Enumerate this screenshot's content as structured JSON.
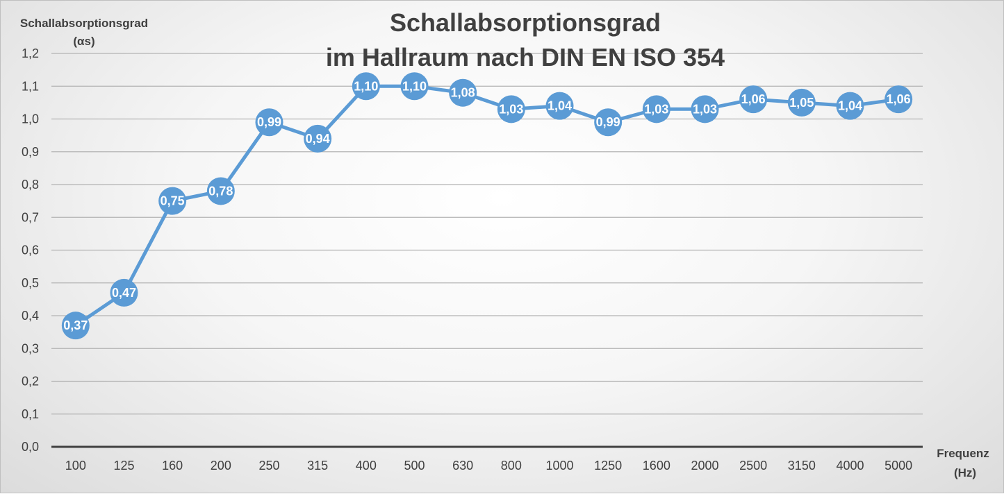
{
  "chart_data": {
    "type": "line",
    "title": [
      "Schallabsorptionsgrad",
      "im Hallraum nach DIN EN ISO 354"
    ],
    "ylabel": [
      "Schallabsorptionsgrad",
      "(αs)"
    ],
    "xlabel": [
      "Frequenz",
      "(Hz)"
    ],
    "ylim": [
      0,
      1.2
    ],
    "yticks": [
      0.0,
      0.1,
      0.2,
      0.3,
      0.4,
      0.5,
      0.6,
      0.7,
      0.8,
      0.9,
      1.0,
      1.1,
      1.2
    ],
    "ytick_labels": [
      "0,0",
      "0,1",
      "0,2",
      "0,3",
      "0,4",
      "0,5",
      "0,6",
      "0,7",
      "0,8",
      "0,9",
      "1,0",
      "1,1",
      "1,2"
    ],
    "categories": [
      "100",
      "125",
      "160",
      "200",
      "250",
      "315",
      "400",
      "500",
      "630",
      "800",
      "1000",
      "1250",
      "1600",
      "2000",
      "2500",
      "3150",
      "4000",
      "5000"
    ],
    "values": [
      0.37,
      0.47,
      0.75,
      0.78,
      0.99,
      0.94,
      1.1,
      1.1,
      1.08,
      1.03,
      1.04,
      0.99,
      1.03,
      1.03,
      1.06,
      1.05,
      1.04,
      1.06
    ],
    "value_labels": [
      "0,37",
      "0,47",
      "0,75",
      "0,78",
      "0,99",
      "0,94",
      "1,10",
      "1,10",
      "1,08",
      "1,03",
      "1,04",
      "0,99",
      "1,03",
      "1,03",
      "1,06",
      "1,05",
      "1,04",
      "1,06"
    ],
    "grid": true,
    "line_color": "#5b9bd5",
    "grid_color": "#b3b3b3",
    "axis_color": "#404040"
  }
}
